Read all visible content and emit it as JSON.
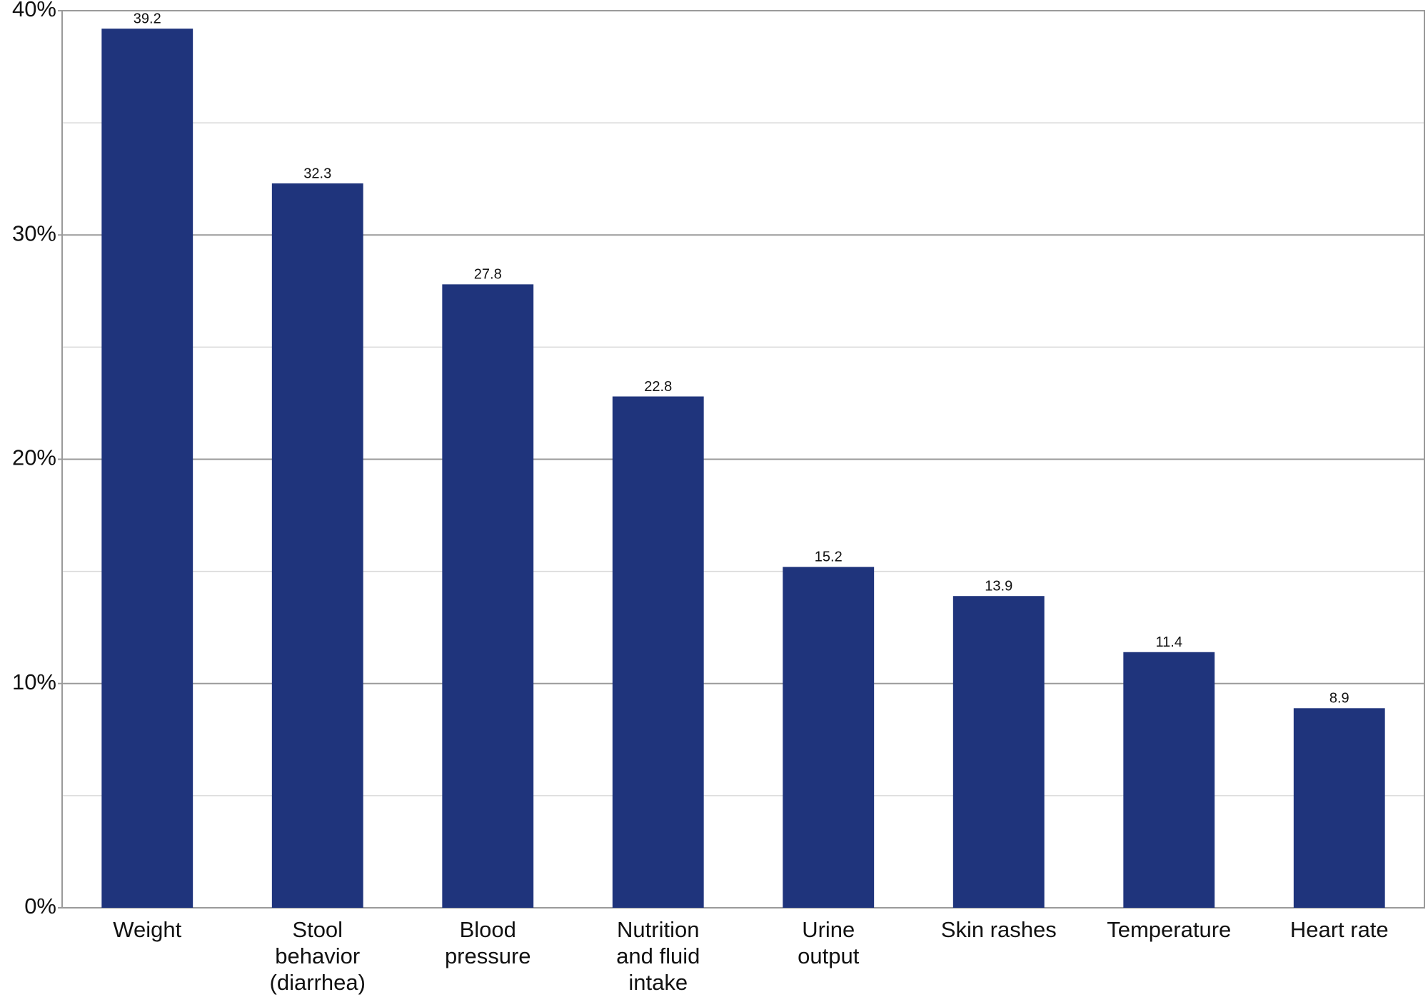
{
  "chart_data": {
    "type": "bar",
    "categories": [
      "Weight",
      "Stool\nbehavior\n(diarrhea)",
      "Blood\npressure",
      "Nutrition\nand fluid\nintake",
      "Urine\noutput",
      "Skin rashes",
      "Temperature",
      "Heart rate"
    ],
    "values": [
      39.2,
      32.3,
      27.8,
      22.8,
      15.2,
      13.9,
      11.4,
      8.9
    ],
    "color": "#1f347c",
    "ylim": [
      0,
      40
    ],
    "yticks": [
      {
        "value": 0,
        "label": "0%"
      },
      {
        "value": 10,
        "label": "10%"
      },
      {
        "value": 20,
        "label": "20%"
      },
      {
        "value": 30,
        "label": "30%"
      },
      {
        "value": 40,
        "label": "40%"
      }
    ],
    "minor_yticks": [
      5,
      15,
      25,
      35
    ],
    "grid": true
  }
}
